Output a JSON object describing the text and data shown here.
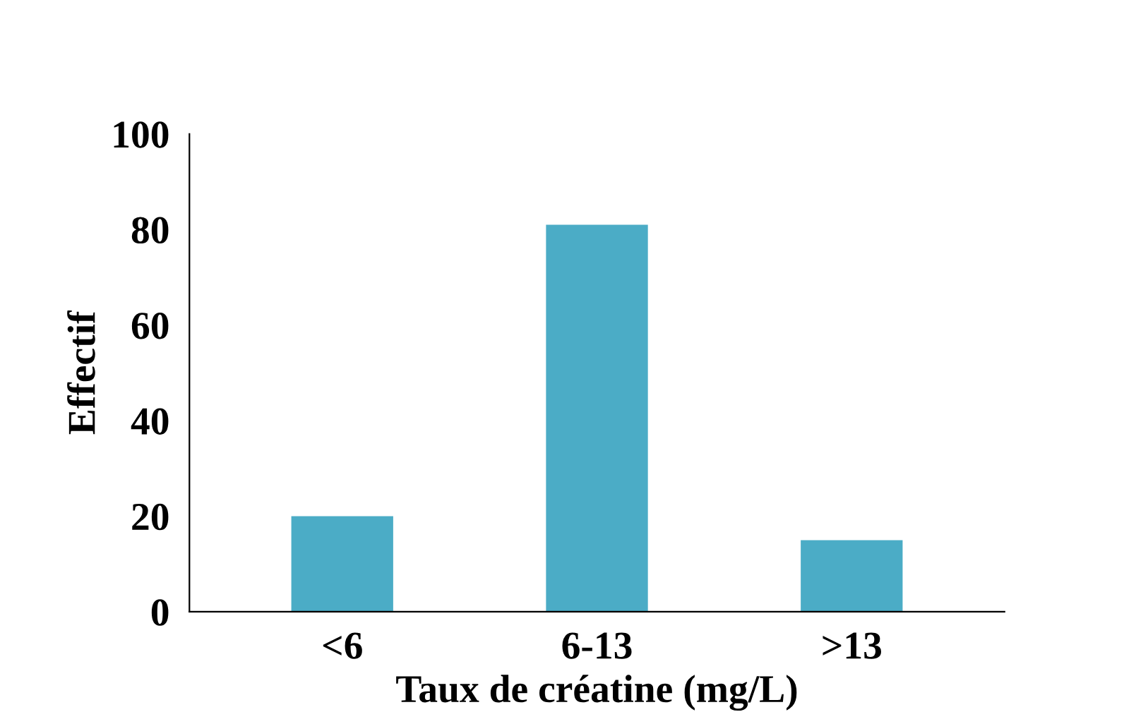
{
  "chart_data": {
    "type": "bar",
    "xlabel": "Taux de créatine (mg/L)",
    "ylabel": "Effectif",
    "categories": [
      "<6",
      "6-13",
      ">13"
    ],
    "values": [
      20,
      81,
      15
    ],
    "color": "#4bacc6",
    "ylim": [
      0,
      100
    ],
    "yticks": [
      0,
      20,
      40,
      60,
      80,
      100
    ],
    "grid": false,
    "legend": false
  }
}
